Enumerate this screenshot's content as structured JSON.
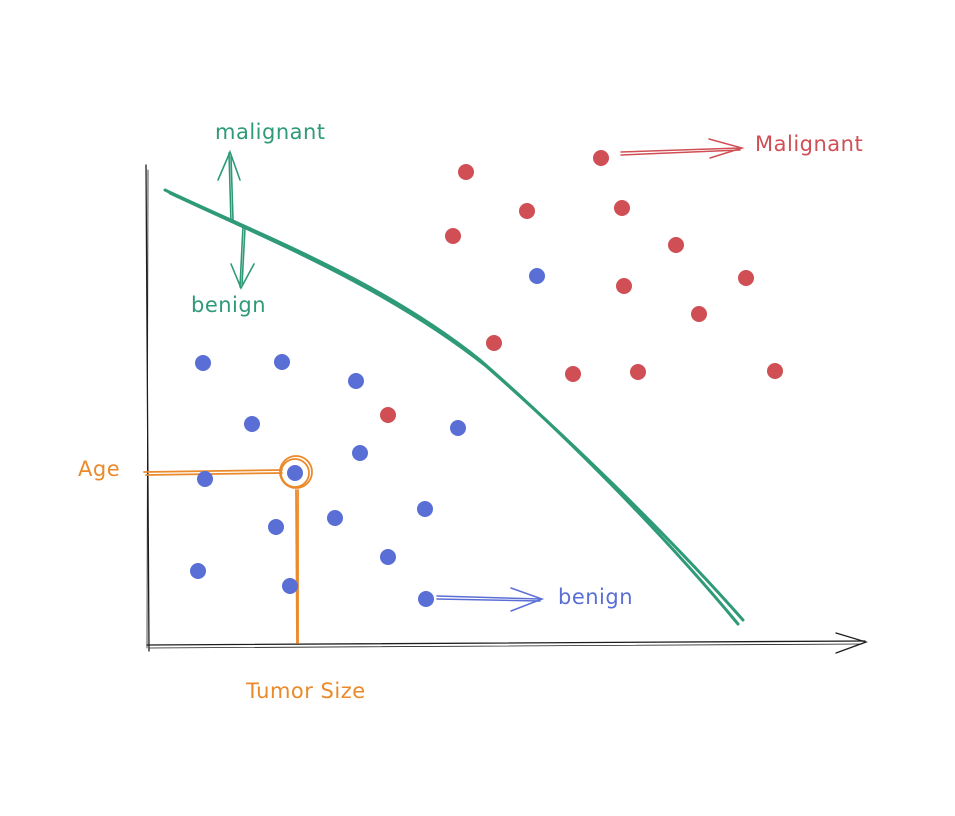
{
  "chart_data": {
    "type": "scatter",
    "xlabel": "Tumor Size",
    "ylabel": "Age",
    "grid": false,
    "series": [
      {
        "name": "Malignant",
        "color": "#d04f55",
        "points": [
          [
            466,
            172
          ],
          [
            601,
            158
          ],
          [
            527,
            211
          ],
          [
            622,
            208
          ],
          [
            453,
            236
          ],
          [
            676,
            245
          ],
          [
            624,
            286
          ],
          [
            746,
            278
          ],
          [
            699,
            314
          ],
          [
            494,
            343
          ],
          [
            573,
            374
          ],
          [
            638,
            372
          ],
          [
            775,
            371
          ],
          [
            388,
            415
          ]
        ]
      },
      {
        "name": "benign",
        "color": "#5a6fd6",
        "points": [
          [
            537,
            276
          ],
          [
            203,
            363
          ],
          [
            282,
            362
          ],
          [
            356,
            381
          ],
          [
            252,
            424
          ],
          [
            458,
            428
          ],
          [
            360,
            453
          ],
          [
            205,
            479
          ],
          [
            295,
            473
          ],
          [
            276,
            527
          ],
          [
            335,
            518
          ],
          [
            425,
            509
          ],
          [
            388,
            557
          ],
          [
            198,
            571
          ],
          [
            290,
            586
          ],
          [
            426,
            599
          ]
        ]
      }
    ],
    "decision_boundary": {
      "label_above": "malignant",
      "label_below": "benign",
      "color": "#2e9a78"
    },
    "highlight": {
      "point": [
        295,
        473
      ],
      "color": "#ea8a2a"
    },
    "annotations": {
      "malignant_label": "Malignant",
      "benign_label": "benign"
    }
  }
}
